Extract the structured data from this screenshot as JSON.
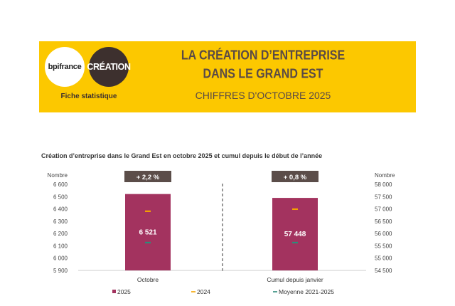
{
  "header": {
    "logo_bpi": "bpifrance",
    "logo_creation": "CRÉATION",
    "fiche": "Fiche statistique",
    "title_line1": "LA CRÉATION D’ENTREPRISE",
    "title_line2": "DANS LE GRAND EST",
    "subtitle": "CHIFFRES D'OCTOBRE 2025"
  },
  "chart_data": [
    {
      "type": "bar",
      "title": "Création d’entreprise dans le Grand Est en octobre 2025 et cumul depuis le début de l’année",
      "ylabel": "Nombre",
      "ylim": [
        5900,
        6600
      ],
      "yticks": [
        "6 600",
        "6 500",
        "6 400",
        "6 300",
        "6 200",
        "6 100",
        "6 000",
        "5 900"
      ],
      "categories": [
        "Octobre"
      ],
      "badge": "+ 2,2 %",
      "series": [
        {
          "name": "2025",
          "values": [
            6521
          ],
          "label": "6 521",
          "color": "#a3335f"
        },
        {
          "name": "2024",
          "values": [
            6381
          ],
          "color": "#f5a300"
        },
        {
          "name": "Moyenne 2021-2025",
          "values": [
            6126
          ],
          "color": "#2e8b7a"
        }
      ]
    },
    {
      "type": "bar",
      "ylabel": "Nombre",
      "ylim": [
        54500,
        58000
      ],
      "yticks": [
        "58 000",
        "57 500",
        "57 000",
        "56 500",
        "56 000",
        "55 500",
        "55 000",
        "54 500"
      ],
      "categories": [
        "Cumul depuis janvier"
      ],
      "badge": "+ 0,8 %",
      "series": [
        {
          "name": "2025",
          "values": [
            57448
          ],
          "label": "57 448",
          "color": "#a3335f"
        },
        {
          "name": "2024",
          "values": [
            56990
          ],
          "color": "#f5a300"
        },
        {
          "name": "Moyenne 2021-2025",
          "values": [
            55630
          ],
          "color": "#2e8b7a"
        }
      ]
    }
  ],
  "legend": [
    "2025",
    "2024",
    "Moyenne 2021-2025"
  ]
}
